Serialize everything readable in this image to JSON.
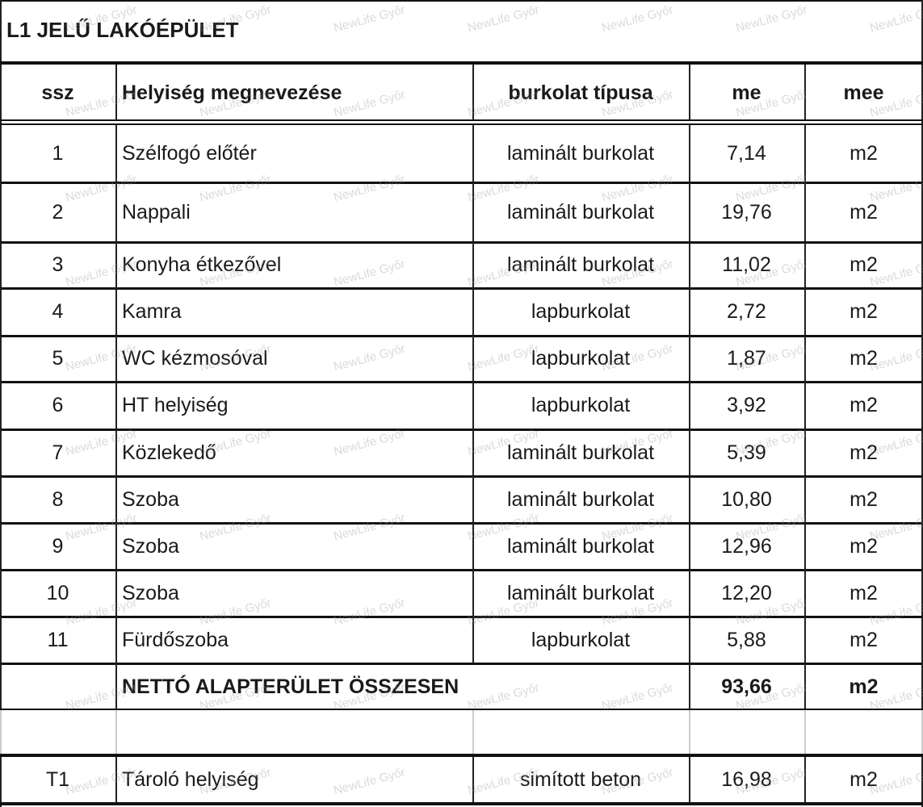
{
  "title": "L1 JELŰ LAKÓÉPÜLET",
  "headers": [
    "ssz",
    "Helyiség megnevezése",
    "burkolat típusa",
    "me",
    "mee"
  ],
  "rows": [
    {
      "ssz": "1",
      "name": "Szélfogó előtér",
      "type": "laminált burkolat",
      "me": "7,14",
      "mee": "m2"
    },
    {
      "ssz": "2",
      "name": "Nappali",
      "type": "laminált burkolat",
      "me": "19,76",
      "mee": "m2"
    },
    {
      "ssz": "3",
      "name": "Konyha étkezővel",
      "type": "laminált burkolat",
      "me": "11,02",
      "mee": "m2"
    },
    {
      "ssz": "4",
      "name": "Kamra",
      "type": "lapburkolat",
      "me": "2,72",
      "mee": "m2"
    },
    {
      "ssz": "5",
      "name": "WC kézmosóval",
      "type": "lapburkolat",
      "me": "1,87",
      "mee": "m2"
    },
    {
      "ssz": "6",
      "name": "HT helyiség",
      "type": "lapburkolat",
      "me": "3,92",
      "mee": "m2"
    },
    {
      "ssz": "7",
      "name": "Közlekedő",
      "type": "laminált burkolat",
      "me": "5,39",
      "mee": "m2"
    },
    {
      "ssz": "8",
      "name": "Szoba",
      "type": "laminált burkolat",
      "me": "10,80",
      "mee": "m2"
    },
    {
      "ssz": "9",
      "name": "Szoba",
      "type": "laminált burkolat",
      "me": "12,96",
      "mee": "m2"
    },
    {
      "ssz": "10",
      "name": "Szoba",
      "type": "laminált burkolat",
      "me": "12,20",
      "mee": "m2"
    },
    {
      "ssz": "11",
      "name": "Fürdőszoba",
      "type": "lapburkolat",
      "me": "5,88",
      "mee": "m2"
    }
  ],
  "total": {
    "label": "NETTÓ ALAPTERÜLET ÖSSZESEN",
    "me": "93,66",
    "mee": "m2"
  },
  "extra_rows": [
    {
      "ssz": "T1",
      "name": "Tároló helyiség",
      "type": "simított beton",
      "me": "16,98",
      "mee": "m2"
    }
  ],
  "watermark": "NewLife Győr"
}
